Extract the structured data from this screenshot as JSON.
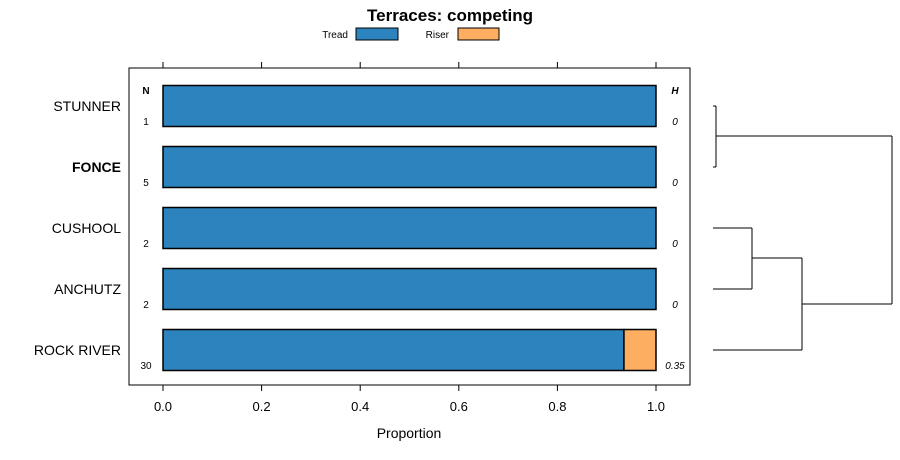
{
  "chart_data": {
    "type": "bar",
    "orientation": "horizontal",
    "stacked": true,
    "title": "Terraces: competing",
    "xlabel": "Proportion",
    "ylabel": "",
    "xlim": [
      0,
      1
    ],
    "x_ticks": [
      "0.0",
      "0.2",
      "0.4",
      "0.6",
      "0.8",
      "1.0"
    ],
    "categories": [
      "STUNNER",
      "FONCE",
      "CUSHOOL",
      "ANCHUTZ",
      "ROCK RIVER"
    ],
    "highlighted_category": "FONCE",
    "series": [
      {
        "name": "Tread",
        "color": "#2c83bd",
        "values": [
          1.0,
          1.0,
          1.0,
          1.0,
          0.935
        ]
      },
      {
        "name": "Riser",
        "color": "#fdae61",
        "values": [
          0.0,
          0.0,
          0.0,
          0.0,
          0.065
        ]
      }
    ],
    "n_header": "N",
    "n_values": [
      "1",
      "5",
      "2",
      "2",
      "30"
    ],
    "h_header": "H",
    "h_values": [
      "0",
      "0",
      "0",
      "0",
      "0.35"
    ],
    "legend_position": "top",
    "grid": false,
    "dendrogram": true
  }
}
